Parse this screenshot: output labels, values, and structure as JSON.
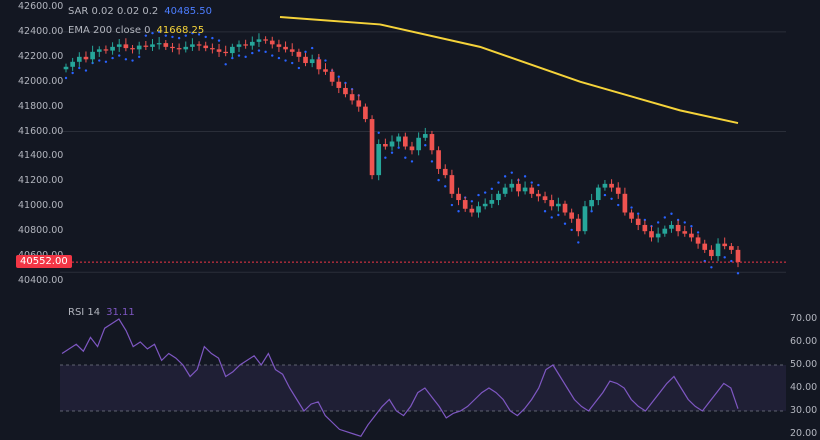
{
  "legend": {
    "sar_label": "SAR 0.02 0.02 0.2",
    "sar_value": "40485.50",
    "ema_label": "EMA 200 close 0",
    "ema_value": "41668.25",
    "rsi_label": "RSI 14",
    "rsi_value": "31.11"
  },
  "price_axis_ticks": [
    "42600.00",
    "42400.00",
    "42200.00",
    "42000.00",
    "41800.00",
    "41600.00",
    "41400.00",
    "41200.00",
    "41000.00",
    "40800.00",
    "40600.00",
    "40400.00"
  ],
  "rsi_axis_ticks": [
    "70.00",
    "60.00",
    "50.00",
    "40.00",
    "30.00",
    "20.00"
  ],
  "last_price": "40552.00",
  "colors": {
    "background": "#131722",
    "up": "#26a69a",
    "down": "#ef5350",
    "sar": "#2962ff",
    "ema": "#f5d33a",
    "rsi": "#7e57c2",
    "price_line": "#f23645"
  },
  "chart_data": [
    {
      "type": "candlestick",
      "title": "",
      "y_range": [
        40400,
        42600
      ],
      "close_series_approx": [
        42120,
        42160,
        42200,
        42180,
        42240,
        42260,
        42250,
        42280,
        42300,
        42270,
        42260,
        42290,
        42280,
        42300,
        42310,
        42280,
        42270,
        42260,
        42280,
        42300,
        42290,
        42270,
        42260,
        42240,
        42230,
        42280,
        42300,
        42290,
        42320,
        42340,
        42330,
        42300,
        42280,
        42260,
        42240,
        42200,
        42150,
        42180,
        42100,
        42080,
        42000,
        41950,
        41900,
        41850,
        41800,
        41700,
        41250,
        41500,
        41480,
        41520,
        41560,
        41480,
        41450,
        41550,
        41580,
        41450,
        41300,
        41250,
        41100,
        41050,
        40980,
        40950,
        41000,
        41020,
        41050,
        41100,
        41150,
        41180,
        41120,
        41150,
        41100,
        41080,
        41050,
        41000,
        41020,
        40950,
        40900,
        40800,
        41000,
        41050,
        41150,
        41180,
        41150,
        41100,
        40950,
        40900,
        40850,
        40800,
        40750,
        40780,
        40820,
        40850,
        40800,
        40780,
        40750,
        40700,
        40650,
        40600,
        40700,
        40680,
        40650,
        40552
      ],
      "sar_value": 40485.5,
      "ema200_value": 41668.25,
      "last_price": 40552.0
    },
    {
      "type": "line",
      "title": "RSI 14",
      "y_range": [
        20,
        70
      ],
      "band": [
        30,
        50
      ],
      "rsi_series_approx": [
        55,
        57,
        59,
        56,
        62,
        58,
        66,
        68,
        70,
        65,
        58,
        60,
        57,
        59,
        52,
        55,
        53,
        50,
        45,
        48,
        58,
        55,
        53,
        45,
        47,
        50,
        52,
        54,
        50,
        55,
        48,
        46,
        40,
        35,
        30,
        33,
        34,
        28,
        25,
        22,
        21,
        20,
        19,
        24,
        28,
        32,
        35,
        30,
        28,
        32,
        38,
        40,
        36,
        32,
        27,
        29,
        30,
        32,
        35,
        38,
        40,
        38,
        35,
        30,
        28,
        31,
        35,
        40,
        48,
        50,
        45,
        40,
        35,
        32,
        30,
        34,
        38,
        43,
        42,
        40,
        35,
        32,
        30,
        34,
        38,
        42,
        45,
        40,
        35,
        32,
        30,
        34,
        38,
        42,
        40,
        31
      ]
    }
  ]
}
